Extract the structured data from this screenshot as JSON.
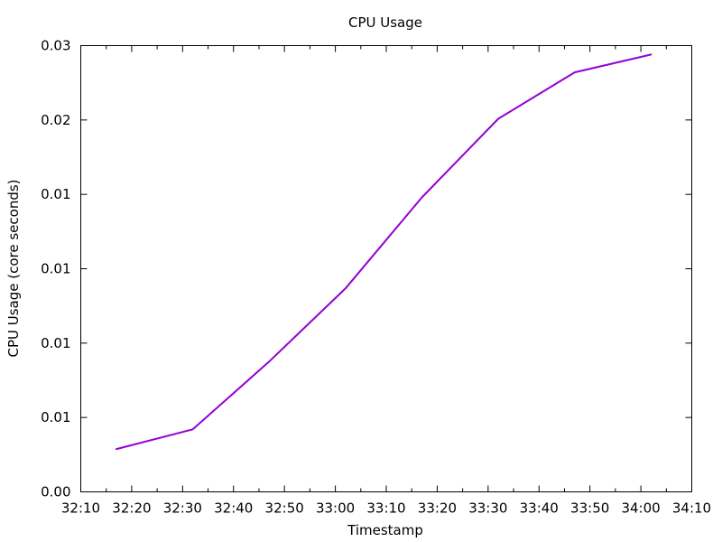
{
  "chart_data": {
    "type": "line",
    "title": "CPU Usage",
    "xlabel": "Timestamp",
    "ylabel": "CPU Usage (core seconds)",
    "x_ticks": [
      "32:10",
      "32:20",
      "32:30",
      "32:40",
      "32:50",
      "33:00",
      "33:10",
      "33:20",
      "33:30",
      "33:40",
      "33:50",
      "34:00",
      "34:10"
    ],
    "y_ticks": [
      "0.00",
      "0.01",
      "0.01",
      "0.01",
      "0.01",
      "0.02",
      "0.03"
    ],
    "xlim": [
      "32:10",
      "34:10"
    ],
    "ylim": [
      0,
      0.025
    ],
    "grid": false,
    "legend": "none",
    "series": [
      {
        "color": "#9400d3",
        "x": [
          "32:17",
          "32:32",
          "32:47",
          "33:02",
          "33:17",
          "33:32",
          "33:47",
          "34:02"
        ],
        "y": [
          0.0024,
          0.0035,
          0.0073,
          0.0114,
          0.0165,
          0.0209,
          0.0235,
          0.0245
        ]
      }
    ]
  }
}
